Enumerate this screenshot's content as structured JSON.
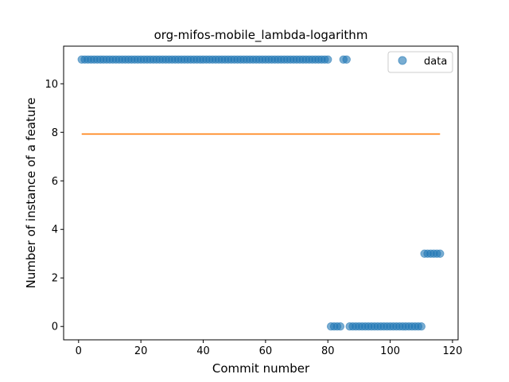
{
  "chart_data": {
    "type": "scatter",
    "title": "org-mifos-mobile_lambda-logarithm",
    "xlabel": "Commit number",
    "ylabel": "Number of instance of a feature",
    "xlim": [
      -4.8,
      121.8
    ],
    "ylim": [
      -0.55,
      11.55
    ],
    "xticks": [
      0,
      20,
      40,
      60,
      80,
      100,
      120
    ],
    "yticks": [
      0,
      2,
      4,
      6,
      8,
      10
    ],
    "legend_position": "top-right",
    "colors": {
      "data": "#1f77b4",
      "fit": "#ff7f0e"
    },
    "series": [
      {
        "name": "data",
        "kind": "scatter",
        "x": [
          1,
          2,
          3,
          4,
          5,
          6,
          7,
          8,
          9,
          10,
          11,
          12,
          13,
          14,
          15,
          16,
          17,
          18,
          19,
          20,
          21,
          22,
          23,
          24,
          25,
          26,
          27,
          28,
          29,
          30,
          31,
          32,
          33,
          34,
          35,
          36,
          37,
          38,
          39,
          40,
          41,
          42,
          43,
          44,
          45,
          46,
          47,
          48,
          49,
          50,
          51,
          52,
          53,
          54,
          55,
          56,
          57,
          58,
          59,
          60,
          61,
          62,
          63,
          64,
          65,
          66,
          67,
          68,
          69,
          70,
          71,
          72,
          73,
          74,
          75,
          76,
          77,
          78,
          79,
          80,
          81,
          82,
          83,
          84,
          85,
          86,
          87,
          88,
          89,
          90,
          91,
          92,
          93,
          94,
          95,
          96,
          97,
          98,
          99,
          100,
          101,
          102,
          103,
          104,
          105,
          106,
          107,
          108,
          109,
          110,
          111,
          112,
          113,
          114,
          115,
          116
        ],
        "y": [
          11,
          11,
          11,
          11,
          11,
          11,
          11,
          11,
          11,
          11,
          11,
          11,
          11,
          11,
          11,
          11,
          11,
          11,
          11,
          11,
          11,
          11,
          11,
          11,
          11,
          11,
          11,
          11,
          11,
          11,
          11,
          11,
          11,
          11,
          11,
          11,
          11,
          11,
          11,
          11,
          11,
          11,
          11,
          11,
          11,
          11,
          11,
          11,
          11,
          11,
          11,
          11,
          11,
          11,
          11,
          11,
          11,
          11,
          11,
          11,
          11,
          11,
          11,
          11,
          11,
          11,
          11,
          11,
          11,
          11,
          11,
          11,
          11,
          11,
          11,
          11,
          11,
          11,
          11,
          11,
          0,
          0,
          0,
          0,
          11,
          11,
          0,
          0,
          0,
          0,
          0,
          0,
          0,
          0,
          0,
          0,
          0,
          0,
          0,
          0,
          0,
          0,
          0,
          0,
          0,
          0,
          0,
          0,
          0,
          0,
          3,
          3,
          3,
          3,
          3,
          3
        ]
      },
      {
        "name": "",
        "kind": "line",
        "x": [
          1,
          116
        ],
        "y": [
          7.93,
          7.93
        ]
      }
    ],
    "legend": [
      "data"
    ]
  }
}
